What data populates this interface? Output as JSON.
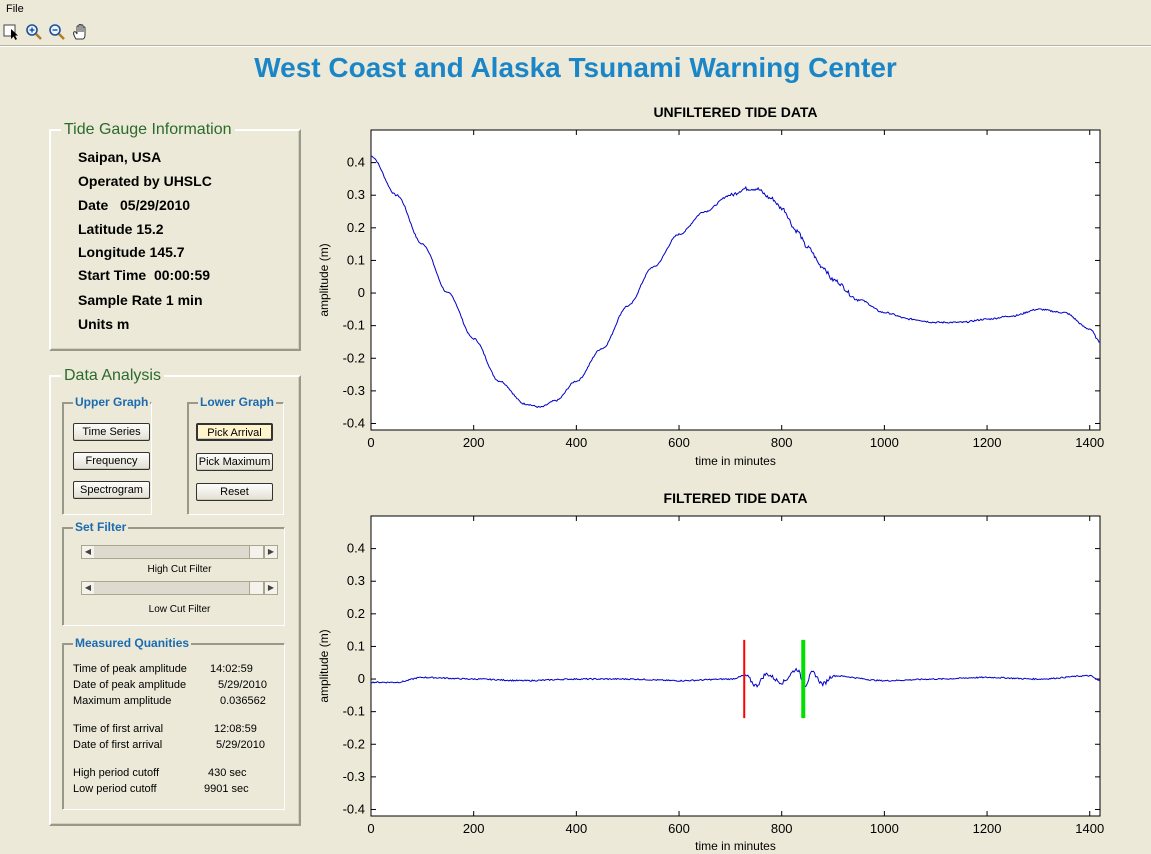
{
  "menu": {
    "file": "File"
  },
  "toolbar": {
    "tools": [
      "pointer-icon",
      "zoom-in-icon",
      "zoom-out-icon",
      "pan-hand-icon"
    ]
  },
  "header": {
    "title": "West Coast and Alaska Tsunami Warning Center"
  },
  "gauge_info": {
    "title": "Tide Gauge Information",
    "lines": [
      "Saipan, USA",
      "Operated by UHSLC",
      "Date   05/29/2010",
      "Latitude 15.2",
      "Longitude 145.7",
      "Start Time  00:00:59",
      "Sample Rate 1 min",
      "Units m"
    ]
  },
  "analysis": {
    "title": "Data Analysis",
    "upper_graph": {
      "title": "Upper Graph",
      "buttons": [
        "Time Series",
        "Frequency",
        "Spectrogram"
      ]
    },
    "lower_graph": {
      "title": "Lower Graph",
      "buttons": [
        "Pick Arrival",
        "Pick Maximum",
        "Reset"
      ]
    },
    "set_filter": {
      "title": "Set Filter",
      "high_label": "High Cut Filter",
      "low_label": "Low Cut Filter",
      "high_value": 0.9,
      "low_value": 0.9
    },
    "measured": {
      "title": "Measured Quanities",
      "rows": [
        {
          "label": "Time of peak amplitude",
          "value": "14:02:59"
        },
        {
          "label": "Date of peak amplitude",
          "value": "5/29/2010"
        },
        {
          "label": "Maximum amplitude",
          "value": "0.036562"
        },
        {
          "label": "Time of first arrival",
          "value": "12:08:59"
        },
        {
          "label": "Date of first arrival",
          "value": "5/29/2010"
        },
        {
          "label": "High period cutoff",
          "value": "430 sec"
        },
        {
          "label": "Low period cutoff",
          "value": "9901 sec"
        }
      ]
    }
  },
  "chart_data": [
    {
      "type": "line",
      "title": "UNFILTERED TIDE DATA",
      "xlabel": "time in minutes",
      "ylabel": "amplitude  (m)",
      "xlim": [
        0,
        1420
      ],
      "ylim": [
        -0.42,
        0.5
      ],
      "xticks": [
        0,
        200,
        400,
        600,
        800,
        1000,
        1200,
        1400
      ],
      "yticks": [
        0.4,
        0.3,
        0.2,
        0.1,
        0,
        -0.1,
        -0.2,
        -0.3,
        -0.4
      ],
      "color": "#0000c8",
      "series": [
        {
          "x": [
            0,
            50,
            100,
            150,
            200,
            250,
            300,
            330,
            360,
            400,
            450,
            500,
            550,
            600,
            650,
            700,
            730,
            750,
            780,
            800,
            830,
            850,
            880,
            900,
            950,
            1000,
            1050,
            1100,
            1150,
            1200,
            1250,
            1300,
            1350,
            1400,
            1420
          ],
          "y": [
            0.42,
            0.3,
            0.15,
            0.0,
            -0.14,
            -0.27,
            -0.34,
            -0.35,
            -0.33,
            -0.27,
            -0.17,
            -0.04,
            0.08,
            0.18,
            0.25,
            0.3,
            0.32,
            0.32,
            0.29,
            0.26,
            0.19,
            0.14,
            0.08,
            0.04,
            -0.02,
            -0.06,
            -0.08,
            -0.09,
            -0.09,
            -0.08,
            -0.07,
            -0.05,
            -0.06,
            -0.11,
            -0.15
          ]
        }
      ]
    },
    {
      "type": "line",
      "title": "FILTERED TIDE DATA",
      "xlabel": "time in minutes",
      "ylabel": "amplitude  (m)",
      "xlim": [
        0,
        1420
      ],
      "ylim": [
        -0.42,
        0.5
      ],
      "xticks": [
        0,
        200,
        400,
        600,
        800,
        1000,
        1200,
        1400
      ],
      "yticks": [
        0.4,
        0.3,
        0.2,
        0.1,
        0,
        -0.1,
        -0.2,
        -0.3,
        -0.4
      ],
      "color": "#0000c8",
      "series": [
        {
          "x": [
            0,
            50,
            100,
            200,
            300,
            400,
            500,
            600,
            700,
            730,
            750,
            770,
            800,
            830,
            845,
            860,
            880,
            900,
            1000,
            1100,
            1200,
            1300,
            1400,
            1420
          ],
          "y": [
            -0.01,
            -0.01,
            0.005,
            0.0,
            -0.005,
            0.0,
            0.0,
            -0.005,
            0.0,
            0.01,
            -0.02,
            0.015,
            -0.01,
            0.03,
            -0.02,
            0.02,
            -0.015,
            0.01,
            -0.005,
            0.0,
            0.005,
            0.0,
            0.01,
            -0.005
          ]
        }
      ],
      "markers": [
        {
          "name": "first-arrival",
          "x": 727,
          "y1": -0.12,
          "y2": 0.12,
          "color": "#ff0000"
        },
        {
          "name": "peak",
          "x": 842,
          "y1": -0.12,
          "y2": 0.12,
          "color": "#00e000"
        }
      ]
    }
  ]
}
